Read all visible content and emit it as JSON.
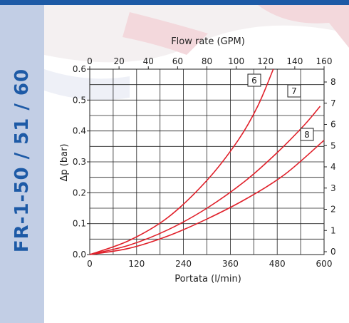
{
  "side_title": "FR-1-50 / 51 / 60",
  "colors": {
    "accent": "#1d5aa6",
    "panel": "#c2cee5",
    "curve": "#e0202a",
    "grid": "#222222"
  },
  "chart_data": {
    "type": "line",
    "xlabel_bottom": "Portata (l/min)",
    "xlabel_top": "Flow rate (GPM)",
    "ylabel_left": "Δp (bar)",
    "xlim": [
      0,
      600
    ],
    "ylim": [
      0,
      0.6
    ],
    "x_ticks": [
      "0",
      "120",
      "240",
      "360",
      "480",
      "600"
    ],
    "y_ticks": [
      "0.0",
      "0.1",
      "0.2",
      "0.3",
      "0.4",
      "0.5",
      "0.6"
    ],
    "top_ticks": [
      "0",
      "20",
      "40",
      "60",
      "80",
      "100",
      "120",
      "140",
      "160"
    ],
    "right_ticks": [
      "0",
      "1",
      "2",
      "3",
      "4",
      "5",
      "6",
      "7",
      "8"
    ],
    "grid": true,
    "series": [
      {
        "name": "6",
        "x": [
          0,
          100,
          200,
          300,
          380,
          430,
          470
        ],
        "y": [
          0,
          0.045,
          0.12,
          0.24,
          0.37,
          0.48,
          0.6
        ]
      },
      {
        "name": "7",
        "x": [
          0,
          100,
          200,
          300,
          400,
          480,
          550,
          590
        ],
        "y": [
          0,
          0.03,
          0.08,
          0.15,
          0.24,
          0.33,
          0.42,
          0.48
        ]
      },
      {
        "name": "8",
        "x": [
          0,
          100,
          200,
          300,
          400,
          500,
          600
        ],
        "y": [
          0,
          0.02,
          0.06,
          0.115,
          0.18,
          0.26,
          0.37
        ]
      }
    ]
  }
}
